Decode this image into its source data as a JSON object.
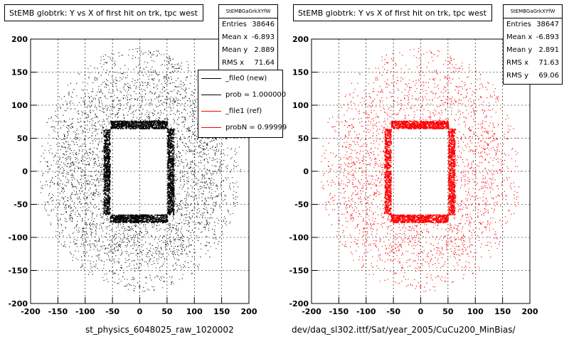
{
  "colors": {
    "ref_marker": "#000000",
    "new_marker": "#ff0000",
    "frame": "#000000"
  },
  "legend": {
    "entries": [
      {
        "label": "_file0 (new)",
        "color": "#000000"
      },
      {
        "label": "prob = 1.000000",
        "color": "#000000"
      },
      {
        "label": "_file1 (ref)",
        "color": "#ff0000"
      },
      {
        "label": "probN = 0.99999",
        "color": "#ff0000"
      }
    ]
  },
  "footer": {
    "left": "st_physics_6048025_raw_1020002",
    "right": "dev/daq_sl302.ittf/Sat/year_2005/CuCu200_MinBias/"
  },
  "chart_data": [
    {
      "type": "scatter",
      "title": "StEMB globtrk: Y vs X of first hit on trk, tpc west",
      "xlabel": "",
      "ylabel": "",
      "xlim": [
        -200,
        200
      ],
      "ylim": [
        -200,
        200
      ],
      "xticks": [
        -200,
        -150,
        -100,
        -50,
        0,
        50,
        100,
        150,
        200
      ],
      "yticks": [
        -200,
        -150,
        -100,
        -50,
        0,
        50,
        100,
        150,
        200
      ],
      "marker_color": "#000000",
      "stats": {
        "name": "StEMBGaGrkXYfW",
        "rows": [
          {
            "label": "Entries",
            "value": "38646"
          },
          {
            "label": "Mean x",
            "value": "-6.893"
          },
          {
            "label": "Mean y",
            "value": "2.889"
          },
          {
            "label": "RMS x",
            "value": "71.64"
          }
        ]
      },
      "distribution": {
        "outer_radius": 185,
        "inner_hole": {
          "x": [
            -55,
            50
          ],
          "y": [
            -65,
            65
          ]
        },
        "dense_ring_width": 12
      }
    },
    {
      "type": "scatter",
      "title": "StEMB globtrk: Y vs X of first hit on trk, tpc west",
      "xlabel": "",
      "ylabel": "",
      "xlim": [
        -200,
        200
      ],
      "ylim": [
        -200,
        200
      ],
      "xticks": [
        -200,
        -150,
        -100,
        -50,
        0,
        50,
        100,
        150,
        200
      ],
      "yticks": [
        -200,
        -150,
        -100,
        -50,
        0,
        50,
        100,
        150,
        200
      ],
      "marker_color": "#ff0000",
      "stats": {
        "name": "StEMBGaGrkXYfW",
        "rows": [
          {
            "label": "Entries",
            "value": "38647"
          },
          {
            "label": "Mean x",
            "value": "-6.893"
          },
          {
            "label": "Mean y",
            "value": "2.891"
          },
          {
            "label": "RMS x",
            "value": "71.63"
          },
          {
            "label": "RMS y",
            "value": "69.06"
          }
        ]
      },
      "distribution": {
        "outer_radius": 185,
        "inner_hole": {
          "x": [
            -55,
            50
          ],
          "y": [
            -65,
            65
          ]
        },
        "dense_ring_width": 12
      }
    }
  ]
}
